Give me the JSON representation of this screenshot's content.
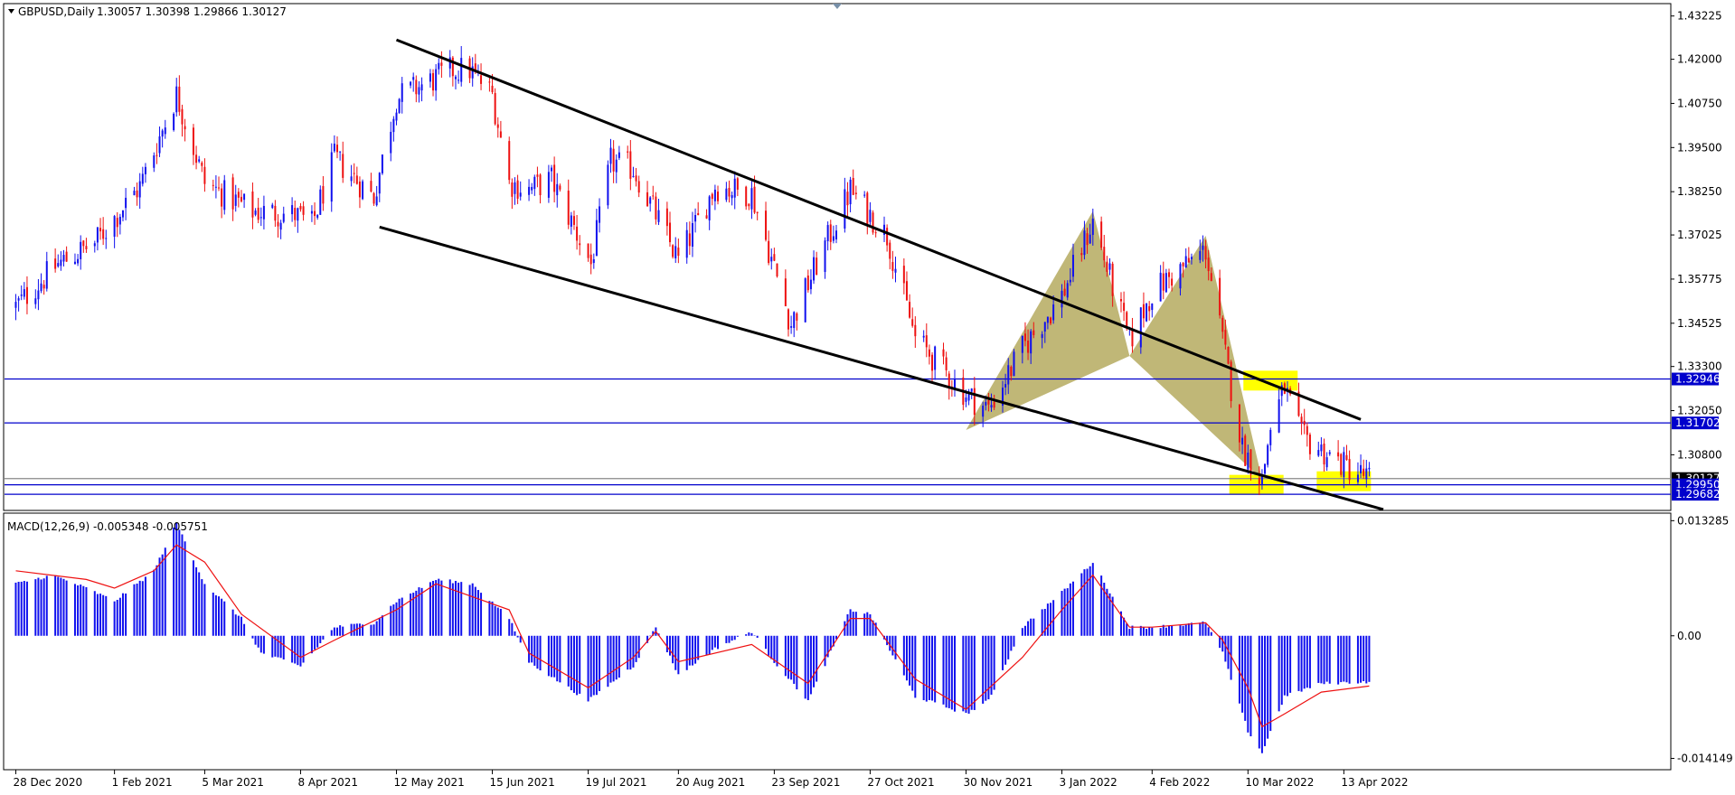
{
  "instrument": {
    "header": "GBPUSD,Daily",
    "ohlc": "1.30057 1.30398 1.29866 1.30127"
  },
  "price_axis": {
    "ticks": [
      "1.43225",
      "1.42000",
      "1.40750",
      "1.39500",
      "1.38250",
      "1.37025",
      "1.35775",
      "1.34525",
      "1.33300",
      "1.32050",
      "1.30800"
    ],
    "range": [
      1.2925,
      1.4355
    ]
  },
  "horizontal_levels": [
    {
      "label": "1.32946",
      "value": 1.32946,
      "color": "#0000cc"
    },
    {
      "label": "1.31702",
      "value": 1.31702,
      "color": "#0000cc"
    },
    {
      "label": "1.30127",
      "value": 1.30127,
      "color": "#888888"
    },
    {
      "label": "1.29950",
      "value": 1.2995,
      "color": "#0000cc"
    },
    {
      "label": "1.29682",
      "value": 1.29682,
      "color": "#0000cc"
    }
  ],
  "macd": {
    "label": "MACD(12,26,9) -0.005348 -0.005751",
    "ticks": [
      "0.013285",
      "0.00",
      "-0.014149"
    ],
    "range": [
      -0.01535,
      0.01405
    ]
  },
  "time_axis": {
    "labels": [
      "28 Dec 2020",
      "1 Feb 2021",
      "5 Mar 2021",
      "8 Apr 2021",
      "12 May 2021",
      "15 Jun 2021",
      "19 Jul 2021",
      "20 Aug 2021",
      "23 Sep 2021",
      "27 Oct 2021",
      "30 Nov 2021",
      "3 Jan 2022",
      "4 Feb 2022",
      "10 Mar 2022",
      "13 Apr 2022"
    ]
  },
  "colors": {
    "bull": "#1010ee",
    "bear": "#ee1111",
    "level_line": "#0000cc",
    "channel_line": "#000000",
    "pattern_fill": "#b5aa5f",
    "highlight": "#ffff00",
    "macd_hist": "#1010ee",
    "macd_signal": "#ee1111",
    "price_tag_bg": "#0000cc",
    "price_tag_text": "#ffffff"
  },
  "chart_data": [
    {
      "type": "candlestick",
      "title": "GBPUSD,Daily",
      "ylim": [
        1.2925,
        1.4355
      ],
      "x_tick_labels": [
        "28 Dec 2020",
        "1 Feb 2021",
        "5 Mar 2021",
        "8 Apr 2021",
        "12 May 2021",
        "15 Jun 2021",
        "19 Jul 2021",
        "20 Aug 2021",
        "23 Sep 2021",
        "27 Oct 2021",
        "30 Nov 2021",
        "3 Jan 2022",
        "4 Feb 2022",
        "10 Mar 2022",
        "13 Apr 2022"
      ],
      "close_path": [
        [
          "28 Dec 2020",
          1.35
        ],
        [
          "12 Jan 2021",
          1.362
        ],
        [
          "25 Jan 2021",
          1.368
        ],
        [
          "10 Feb 2021",
          1.384
        ],
        [
          "23 Feb 2021",
          1.41
        ],
        [
          "5 Mar 2021",
          1.385
        ],
        [
          "22 Mar 2021",
          1.377
        ],
        [
          "6 Apr 2021",
          1.376
        ],
        [
          "12 Apr 2021",
          1.373
        ],
        [
          "20 Apr 2021",
          1.392
        ],
        [
          "4 May 2021",
          1.381
        ],
        [
          "12 May 2021",
          1.409
        ],
        [
          "1 Jun 2021",
          1.417
        ],
        [
          "7 Jun 2021",
          1.417
        ],
        [
          "15 Jun 2021",
          1.41
        ],
        [
          "21 Jun 2021",
          1.385
        ],
        [
          "28 Jun 2021",
          1.383
        ],
        [
          "6 Jul 2021",
          1.386
        ],
        [
          "20 Jul 2021",
          1.362
        ],
        [
          "27 Jul 2021",
          1.391
        ],
        [
          "4 Aug 2021",
          1.389
        ],
        [
          "20 Aug 2021",
          1.363
        ],
        [
          "2 Sep 2021",
          1.384
        ],
        [
          "15 Sep 2021",
          1.382
        ],
        [
          "29 Sep 2021",
          1.345
        ],
        [
          "8 Oct 2021",
          1.362
        ],
        [
          "20 Oct 2021",
          1.383
        ],
        [
          "2 Nov 2021",
          1.37
        ],
        [
          "12 Nov 2021",
          1.341
        ],
        [
          "30 Nov 2021",
          1.325
        ],
        [
          "8 Dec 2021",
          1.321
        ],
        [
          "20 Dec 2021",
          1.338
        ],
        [
          "3 Jan 2022",
          1.353
        ],
        [
          "14 Jan 2022",
          1.374
        ],
        [
          "27 Jan 2022",
          1.34
        ],
        [
          "4 Feb 2022",
          1.354
        ],
        [
          "10 Feb 2022",
          1.358
        ],
        [
          "23 Feb 2022",
          1.366
        ],
        [
          "1 Mar 2022",
          1.34
        ],
        [
          "8 Mar 2022",
          1.31
        ],
        [
          "15 Mar 2022",
          1.301
        ],
        [
          "18 Mar 2022",
          1.316
        ],
        [
          "23 Mar 2022",
          1.327
        ],
        [
          "29 Mar 2022",
          1.313
        ],
        [
          "13 Apr 2022",
          1.305
        ],
        [
          "22 Apr 2022",
          1.3013
        ]
      ],
      "horizontal_levels": [
        1.32946,
        1.31702,
        1.30127,
        1.2995,
        1.29682
      ],
      "pattern": {
        "type": "harmonic",
        "points": [
          [
            "30 Nov 2021",
            1.315
          ],
          [
            "14 Jan 2022",
            1.377
          ],
          [
            "27 Jan 2022",
            1.336
          ],
          [
            "23 Feb 2022",
            1.37
          ],
          [
            "15 Mar 2022",
            1.301
          ]
        ]
      },
      "trend_lines": [
        {
          "from": [
            "12 May 2021",
            1.4255
          ],
          "to": [
            "19 Apr 2022",
            1.318
          ]
        },
        {
          "from": [
            "6 May 2021",
            1.3725
          ],
          "to": [
            "27 Apr 2022",
            1.2925
          ]
        }
      ],
      "highlighted_zones": [
        {
          "date": "18 Mar 2022",
          "price": 1.329
        },
        {
          "date": "13 Mar 2022",
          "price": 1.2995
        },
        {
          "date": "13 Apr 2022",
          "price": 1.3005
        }
      ]
    },
    {
      "type": "histogram",
      "title": "MACD(12,26,9) -0.005348 -0.005751",
      "ylim": [
        -0.01535,
        0.01405
      ],
      "y_tick_labels": [
        "0.013285",
        "0.00",
        "-0.014149"
      ],
      "histogram_path": [
        [
          "28 Dec 2020",
          0.006
        ],
        [
          "10 Jan 2021",
          0.007
        ],
        [
          "22 Jan 2021",
          0.0055
        ],
        [
          "1 Feb 2021",
          0.004
        ],
        [
          "15 Feb 2021",
          0.0075
        ],
        [
          "23 Feb 2021",
          0.013
        ],
        [
          "5 Mar 2021",
          0.006
        ],
        [
          "18 Mar 2021",
          0.002
        ],
        [
          "25 Mar 2021",
          -0.002
        ],
        [
          "8 Apr 2021",
          -0.0035
        ],
        [
          "20 Apr 2021",
          0.001
        ],
        [
          "4 May 2021",
          0.0015
        ],
        [
          "12 May 2021",
          0.004
        ],
        [
          "26 May 2021",
          0.0065
        ],
        [
          "8 Jun 2021",
          0.006
        ],
        [
          "21 Jun 2021",
          0.002
        ],
        [
          "28 Jun 2021",
          -0.003
        ],
        [
          "19 Jul 2021",
          -0.0075
        ],
        [
          "4 Aug 2021",
          -0.0035
        ],
        [
          "12 Aug 2021",
          0.001
        ],
        [
          "20 Aug 2021",
          -0.0045
        ],
        [
          "2 Sep 2021",
          -0.0015
        ],
        [
          "15 Sep 2021",
          0.0005
        ],
        [
          "23 Sep 2021",
          -0.003
        ],
        [
          "5 Oct 2021",
          -0.0075
        ],
        [
          "20 Oct 2021",
          0.003
        ],
        [
          "27 Oct 2021",
          0.0025
        ],
        [
          "12 Nov 2021",
          -0.007
        ],
        [
          "30 Nov 2021",
          -0.009
        ],
        [
          "8 Dec 2021",
          -0.0075
        ],
        [
          "20 Dec 2021",
          0.001
        ],
        [
          "3 Jan 2022",
          0.005
        ],
        [
          "14 Jan 2022",
          0.0085
        ],
        [
          "27 Jan 2022",
          0.001
        ],
        [
          "4 Feb 2022",
          0.001
        ],
        [
          "23 Feb 2022",
          0.0015
        ],
        [
          "1 Mar 2022",
          -0.002
        ],
        [
          "10 Mar 2022",
          -0.011
        ],
        [
          "15 Mar 2022",
          -0.0135
        ],
        [
          "23 Mar 2022",
          -0.007
        ],
        [
          "5 Apr 2022",
          -0.0055
        ],
        [
          "22 Apr 2022",
          -0.0053
        ]
      ],
      "signal_path": [
        [
          "28 Dec 2020",
          0.0075
        ],
        [
          "22 Jan 2021",
          0.0065
        ],
        [
          "1 Feb 2021",
          0.0055
        ],
        [
          "15 Feb 2021",
          0.0075
        ],
        [
          "23 Feb 2021",
          0.0105
        ],
        [
          "5 Mar 2021",
          0.0085
        ],
        [
          "18 Mar 2021",
          0.0025
        ],
        [
          "8 Apr 2021",
          -0.0025
        ],
        [
          "20 Apr 2021",
          -0.0005
        ],
        [
          "12 May 2021",
          0.003
        ],
        [
          "26 May 2021",
          0.006
        ],
        [
          "21 Jun 2021",
          0.003
        ],
        [
          "28 Jun 2021",
          -0.002
        ],
        [
          "19 Jul 2021",
          -0.006
        ],
        [
          "4 Aug 2021",
          -0.0025
        ],
        [
          "12 Aug 2021",
          0.0005
        ],
        [
          "20 Aug 2021",
          -0.003
        ],
        [
          "15 Sep 2021",
          -0.001
        ],
        [
          "5 Oct 2021",
          -0.0055
        ],
        [
          "20 Oct 2021",
          0.002
        ],
        [
          "27 Oct 2021",
          0.002
        ],
        [
          "12 Nov 2021",
          -0.005
        ],
        [
          "30 Nov 2021",
          -0.0085
        ],
        [
          "20 Dec 2021",
          -0.0025
        ],
        [
          "3 Jan 2022",
          0.003
        ],
        [
          "14 Jan 2022",
          0.007
        ],
        [
          "27 Jan 2022",
          0.001
        ],
        [
          "4 Feb 2022",
          0.001
        ],
        [
          "23 Feb 2022",
          0.0015
        ],
        [
          "1 Mar 2022",
          -0.0005
        ],
        [
          "10 Mar 2022",
          -0.006
        ],
        [
          "15 Mar 2022",
          -0.0105
        ],
        [
          "23 Mar 2022",
          -0.009
        ],
        [
          "5 Apr 2022",
          -0.0065
        ],
        [
          "22 Apr 2022",
          -0.0058
        ]
      ]
    }
  ]
}
